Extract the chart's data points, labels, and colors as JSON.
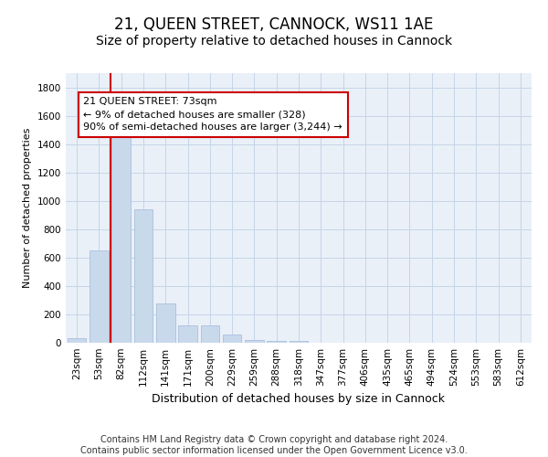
{
  "title": "21, QUEEN STREET, CANNOCK, WS11 1AE",
  "subtitle": "Size of property relative to detached houses in Cannock",
  "xlabel": "Distribution of detached houses by size in Cannock",
  "ylabel": "Number of detached properties",
  "categories": [
    "23sqm",
    "53sqm",
    "82sqm",
    "112sqm",
    "141sqm",
    "171sqm",
    "200sqm",
    "229sqm",
    "259sqm",
    "288sqm",
    "318sqm",
    "347sqm",
    "377sqm",
    "406sqm",
    "435sqm",
    "465sqm",
    "494sqm",
    "524sqm",
    "553sqm",
    "583sqm",
    "612sqm"
  ],
  "bar_values": [
    35,
    650,
    1470,
    940,
    275,
    120,
    120,
    60,
    22,
    12,
    10,
    0,
    0,
    0,
    0,
    0,
    0,
    0,
    0,
    0,
    0
  ],
  "bar_color": "#c9d9ec",
  "bar_edgecolor": "#a0b8d8",
  "property_line_color": "#cc0000",
  "annotation_text": "21 QUEEN STREET: 73sqm\n← 9% of detached houses are smaller (328)\n90% of semi-detached houses are larger (3,244) →",
  "annotation_box_color": "#cc0000",
  "ylim": [
    0,
    1900
  ],
  "yticks": [
    0,
    200,
    400,
    600,
    800,
    1000,
    1200,
    1400,
    1600,
    1800
  ],
  "grid_color": "#c5d5e8",
  "background_color": "#eaf0f8",
  "footer_text": "Contains HM Land Registry data © Crown copyright and database right 2024.\nContains public sector information licensed under the Open Government Licence v3.0.",
  "title_fontsize": 12,
  "subtitle_fontsize": 10,
  "xlabel_fontsize": 9,
  "ylabel_fontsize": 8,
  "tick_fontsize": 7.5,
  "annotation_fontsize": 8,
  "footer_fontsize": 7
}
